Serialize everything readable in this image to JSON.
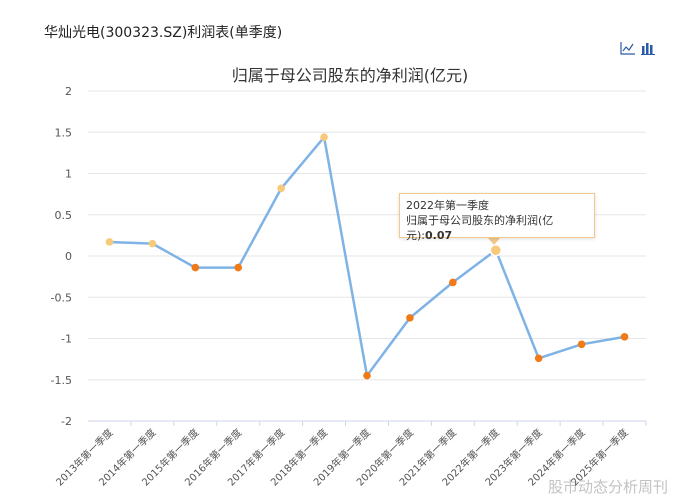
{
  "page": {
    "title": "华灿光电(300323.SZ)利润表(单季度)",
    "watermark": "股市动态分析周刊"
  },
  "toolbar": {
    "line_icon": "line-chart-icon",
    "bar_icon": "bar-chart-icon"
  },
  "colors": {
    "line": "#7fb3e6",
    "point_neg": "#f07a17",
    "point_pos": "#f7c97a",
    "grid": "#e6e6e6"
  },
  "chart_data": {
    "type": "line",
    "title": "归属于母公司股东的净利润(亿元)",
    "categories": [
      "2013年第一季度",
      "2014年第一季度",
      "2015年第一季度",
      "2016年第一季度",
      "2017年第一季度",
      "2018年第一季度",
      "2019年第一季度",
      "2020年第一季度",
      "2021年第一季度",
      "2022年第一季度",
      "2023年第一季度",
      "2024年第一季度",
      "2025年第一季度"
    ],
    "series": [
      {
        "values": [
          0.17,
          0.15,
          -0.14,
          -0.14,
          0.82,
          1.44,
          -1.45,
          -0.75,
          -0.32,
          0.07,
          -1.24,
          -1.07,
          -0.98
        ]
      }
    ],
    "ylim": [
      -2,
      2
    ],
    "yticks": [
      2,
      1.5,
      1,
      0.5,
      0,
      -0.5,
      -1,
      -1.5,
      -2
    ],
    "grid": true,
    "tooltip": {
      "category": "2022年第一季度",
      "label": "归属于母公司股东的净利润(亿元):",
      "value": "0.07"
    }
  }
}
